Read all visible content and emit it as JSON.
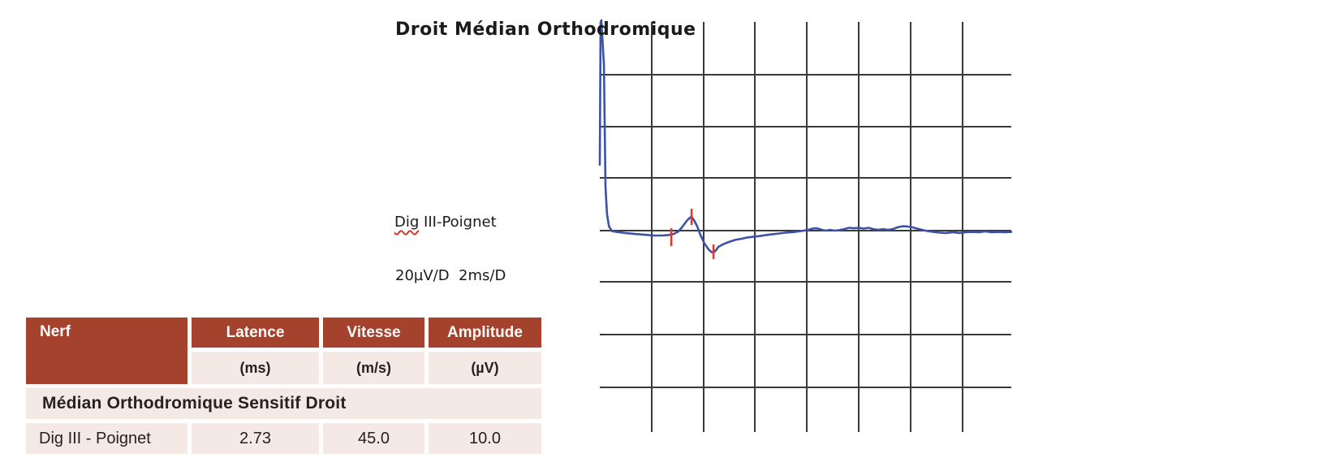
{
  "chart": {
    "title": "Droit Médian Orthodromique",
    "trace_label": {
      "underlined": "Dig",
      "rest": " III-Poignet"
    },
    "scale_label": "20µV/D  2ms/D",
    "colors": {
      "trace": "#3c52a7",
      "cursor": "#df392c",
      "grid": "#3a3a3a"
    }
  },
  "chart_data": {
    "type": "line",
    "title": "Droit Médian Orthodromique",
    "trace_name": "Dig III-Poignet",
    "sweep_label": "20µV/D  2ms/D",
    "units": {
      "x": "ms",
      "y": "µV"
    },
    "scale": {
      "x_per_div": 2,
      "y_per_div": 20
    },
    "divisions": {
      "x": 8,
      "y": 8
    },
    "x_range": [
      0,
      16
    ],
    "grid": "on",
    "points": [
      [
        0,
        25.6
      ],
      [
        0.03,
        80.8
      ],
      [
        0.06,
        81.7
      ],
      [
        0.16,
        64.4
      ],
      [
        0.22,
        17
      ],
      [
        0.28,
        6.3
      ],
      [
        0.36,
        1.6
      ],
      [
        0.47,
        -0.2
      ],
      [
        0.66,
        -0.5
      ],
      [
        0.98,
        -0.9
      ],
      [
        1.36,
        -1.3
      ],
      [
        1.74,
        -1.6
      ],
      [
        2.11,
        -1.9
      ],
      [
        2.43,
        -1.9
      ],
      [
        2.68,
        -1.7
      ],
      [
        2.87,
        -1.3
      ],
      [
        3.06,
        -0.3
      ],
      [
        3.22,
        1.6
      ],
      [
        3.38,
        3.8
      ],
      [
        3.5,
        5
      ],
      [
        3.57,
        5.4
      ],
      [
        3.66,
        4.1
      ],
      [
        3.79,
        1.6
      ],
      [
        3.91,
        -1.6
      ],
      [
        4.07,
        -5
      ],
      [
        4.23,
        -7.3
      ],
      [
        4.35,
        -8.4
      ],
      [
        4.42,
        -8.5
      ],
      [
        4.51,
        -7.7
      ],
      [
        4.61,
        -6.3
      ],
      [
        4.7,
        -5.8
      ],
      [
        4.86,
        -5
      ],
      [
        5.05,
        -4.3
      ],
      [
        5.27,
        -3.6
      ],
      [
        5.49,
        -3.2
      ],
      [
        5.71,
        -2.7
      ],
      [
        5.96,
        -2.4
      ],
      [
        6.22,
        -2.1
      ],
      [
        6.47,
        -1.7
      ],
      [
        6.72,
        -1.4
      ],
      [
        6.97,
        -1.1
      ],
      [
        7.23,
        -0.8
      ],
      [
        7.48,
        -0.6
      ],
      [
        7.73,
        -0.3
      ],
      [
        7.92,
        0
      ],
      [
        8.11,
        0.3
      ],
      [
        8.27,
        0.8
      ],
      [
        8.43,
        0.9
      ],
      [
        8.55,
        0.6
      ],
      [
        8.68,
        0.2
      ],
      [
        8.8,
        0
      ],
      [
        8.96,
        0.3
      ],
      [
        9.12,
        0
      ],
      [
        9.31,
        0.2
      ],
      [
        9.5,
        0.6
      ],
      [
        9.69,
        1.1
      ],
      [
        9.88,
        0.9
      ],
      [
        10.07,
        1.1
      ],
      [
        10.26,
        0.8
      ],
      [
        10.45,
        1.1
      ],
      [
        10.63,
        0.6
      ],
      [
        10.82,
        0.3
      ],
      [
        11.01,
        0.6
      ],
      [
        11.2,
        0.3
      ],
      [
        11.39,
        0.6
      ],
      [
        11.58,
        1.3
      ],
      [
        11.77,
        1.7
      ],
      [
        11.96,
        1.6
      ],
      [
        12.15,
        1.3
      ],
      [
        12.34,
        0.8
      ],
      [
        12.53,
        0.3
      ],
      [
        12.75,
        -0.2
      ],
      [
        12.97,
        -0.5
      ],
      [
        13.22,
        -0.8
      ],
      [
        13.47,
        -0.9
      ],
      [
        13.73,
        -0.6
      ],
      [
        13.98,
        -0.9
      ],
      [
        14.23,
        -0.6
      ],
      [
        14.48,
        -0.5
      ],
      [
        14.74,
        -0.6
      ],
      [
        14.99,
        -0.3
      ],
      [
        15.24,
        -0.6
      ],
      [
        15.49,
        -0.5
      ],
      [
        15.75,
        -0.6
      ],
      [
        16,
        -0.5
      ]
    ],
    "cursors": [
      {
        "name": "onset",
        "t_ms": 2.78,
        "uv_from": 0.9,
        "uv_to": -6.0
      },
      {
        "name": "peak",
        "t_ms": 3.57,
        "uv_from": 8.5,
        "uv_to": 2.2
      },
      {
        "name": "trough",
        "t_ms": 4.42,
        "uv_from": -5.4,
        "uv_to": -11.0
      }
    ]
  },
  "table": {
    "columns": [
      {
        "label": "Nerf",
        "unit": ""
      },
      {
        "label": "Latence",
        "unit": "(ms)"
      },
      {
        "label": "Vitesse",
        "unit": "(m/s)"
      },
      {
        "label": "Amplitude",
        "unit": "(µV)"
      }
    ],
    "section": "Médian Orthodromique Sensitif Droit",
    "rows": [
      {
        "nerf": "Dig III - Poignet",
        "latence": "2.73",
        "vitesse": "45.0",
        "amplitude": "10.0"
      }
    ],
    "colors": {
      "header_bg": "#a5422e",
      "row_bg": "#f4e9e4"
    }
  }
}
